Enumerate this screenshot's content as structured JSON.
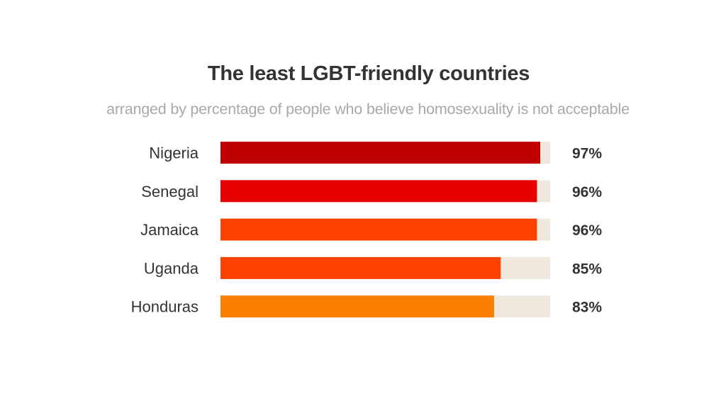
{
  "chart_data": {
    "type": "bar",
    "orientation": "horizontal",
    "title": "The least LGBT-friendly countries",
    "subtitle": "arranged by percentage of people who believe homosexuality is not acceptable",
    "categories": [
      "Nigeria",
      "Senegal",
      "Jamaica",
      "Uganda",
      "Honduras"
    ],
    "values": [
      97,
      96,
      96,
      85,
      83
    ],
    "value_labels": [
      "97%",
      "96%",
      "96%",
      "85%",
      "83%"
    ],
    "xlim": [
      0,
      100
    ],
    "grid": false,
    "legend": "none",
    "bar_colors": [
      "#c00000",
      "#e80000",
      "#fc4100",
      "#fc4100",
      "#fc8000"
    ],
    "track_color": "#efe8dd"
  }
}
